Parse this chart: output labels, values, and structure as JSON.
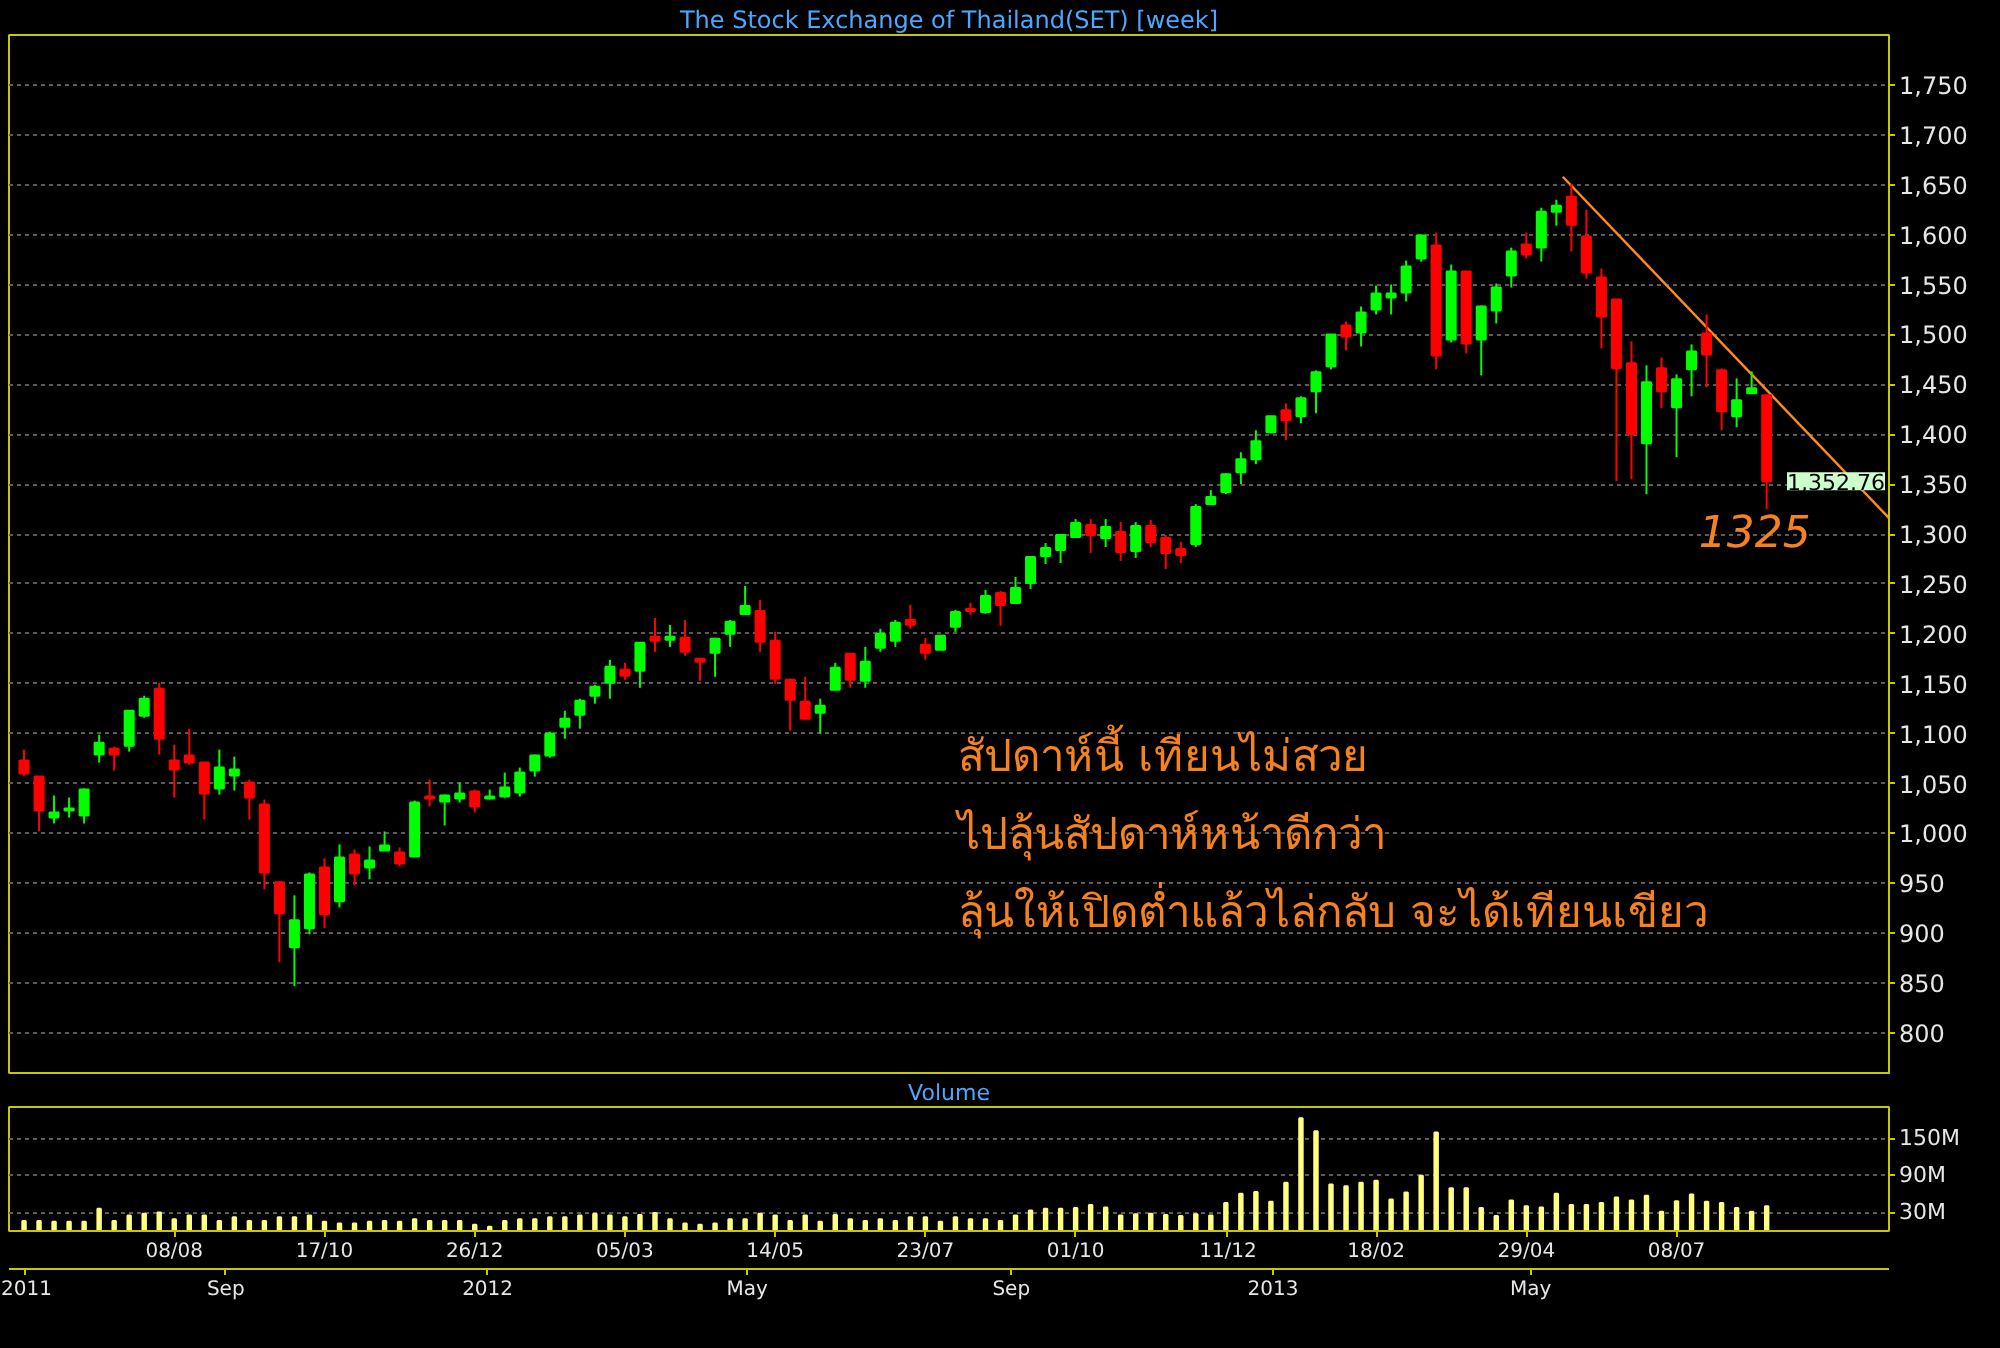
{
  "chart_data": [
    {
      "type": "candlestick",
      "title": "The Stock Exchange of Thailand(SET) [week]",
      "x": [
        "2011-05-30",
        "2011-06-06",
        "2011-06-13",
        "2011-06-20",
        "2011-06-27",
        "2011-07-04",
        "2011-07-11",
        "2011-07-18",
        "2011-07-25",
        "2011-08-01",
        "2011-08-08",
        "2011-08-15",
        "2011-08-22",
        "2011-08-29",
        "2011-09-05",
        "2011-09-12",
        "2011-09-19",
        "2011-09-26",
        "2011-10-03",
        "2011-10-10",
        "2011-10-17",
        "2011-10-24",
        "2011-10-31",
        "2011-11-07",
        "2011-11-14",
        "2011-11-21",
        "2011-11-28",
        "2011-12-05",
        "2011-12-12",
        "2011-12-19",
        "2011-12-26",
        "2012-01-02",
        "2012-01-09",
        "2012-01-16",
        "2012-01-23",
        "2012-01-30",
        "2012-02-06",
        "2012-02-13",
        "2012-02-20",
        "2012-02-27",
        "2012-03-05",
        "2012-03-12",
        "2012-03-19",
        "2012-03-26",
        "2012-04-02",
        "2012-04-09",
        "2012-04-16",
        "2012-04-23",
        "2012-04-30",
        "2012-05-07",
        "2012-05-14",
        "2012-05-21",
        "2012-05-28",
        "2012-06-04",
        "2012-06-11",
        "2012-06-18",
        "2012-06-25",
        "2012-07-02",
        "2012-07-09",
        "2012-07-16",
        "2012-07-23",
        "2012-07-30",
        "2012-08-06",
        "2012-08-13",
        "2012-08-20",
        "2012-08-27",
        "2012-09-03",
        "2012-09-10",
        "2012-09-17",
        "2012-09-24",
        "2012-10-01",
        "2012-10-08",
        "2012-10-15",
        "2012-10-22",
        "2012-10-29",
        "2012-11-05",
        "2012-11-12",
        "2012-11-19",
        "2012-11-26",
        "2012-12-03",
        "2012-12-10",
        "2012-12-17",
        "2012-12-24",
        "2012-12-31",
        "2013-01-07",
        "2013-01-14",
        "2013-01-21",
        "2013-01-28",
        "2013-02-04",
        "2013-02-11",
        "2013-02-18",
        "2013-02-25",
        "2013-03-04",
        "2013-03-11",
        "2013-03-18",
        "2013-03-25",
        "2013-04-01",
        "2013-04-08",
        "2013-04-15",
        "2013-04-22",
        "2013-04-29",
        "2013-05-06",
        "2013-05-13",
        "2013-05-20",
        "2013-05-27",
        "2013-06-03",
        "2013-06-10",
        "2013-06-17",
        "2013-06-24",
        "2013-07-01",
        "2013-07-08",
        "2013-07-15",
        "2013-07-22",
        "2013-07-29",
        "2013-08-05",
        "2013-08-12",
        "2013-08-19"
      ],
      "ohlc": [
        [
          1073,
          1084,
          1058,
          1060
        ],
        [
          1057,
          1057,
          1002,
          1023
        ],
        [
          1016,
          1038,
          1010,
          1021
        ],
        [
          1023,
          1036,
          1016,
          1025
        ],
        [
          1018,
          1045,
          1010,
          1044
        ],
        [
          1079,
          1099,
          1071,
          1091
        ],
        [
          1085,
          1087,
          1063,
          1079
        ],
        [
          1088,
          1123,
          1082,
          1123
        ],
        [
          1118,
          1138,
          1116,
          1135
        ],
        [
          1145,
          1151,
          1079,
          1095
        ],
        [
          1073,
          1089,
          1036,
          1064
        ],
        [
          1078,
          1105,
          1069,
          1071
        ],
        [
          1071,
          1071,
          1014,
          1040
        ],
        [
          1045,
          1084,
          1039,
          1066
        ],
        [
          1058,
          1077,
          1043,
          1064
        ],
        [
          1051,
          1054,
          1014,
          1036
        ],
        [
          1029,
          1034,
          944,
          961
        ],
        [
          951,
          952,
          871,
          920
        ],
        [
          886,
          938,
          847,
          913
        ],
        [
          905,
          961,
          899,
          959
        ],
        [
          966,
          975,
          905,
          919
        ],
        [
          932,
          989,
          926,
          976
        ],
        [
          979,
          984,
          948,
          960
        ],
        [
          966,
          987,
          954,
          973
        ],
        [
          983,
          1002,
          983,
          988
        ],
        [
          981,
          986,
          967,
          970
        ],
        [
          977,
          1033,
          977,
          1031
        ],
        [
          1037,
          1054,
          1027,
          1035
        ],
        [
          1032,
          1039,
          1008,
          1038
        ],
        [
          1035,
          1051,
          1031,
          1040
        ],
        [
          1042,
          1044,
          1021,
          1027
        ],
        [
          1035,
          1044,
          1034,
          1037
        ],
        [
          1037,
          1061,
          1036,
          1046
        ],
        [
          1041,
          1066,
          1037,
          1061
        ],
        [
          1063,
          1079,
          1057,
          1078
        ],
        [
          1078,
          1102,
          1076,
          1100
        ],
        [
          1107,
          1123,
          1095,
          1115
        ],
        [
          1119,
          1135,
          1105,
          1133
        ],
        [
          1138,
          1149,
          1130,
          1147
        ],
        [
          1151,
          1174,
          1135,
          1167
        ],
        [
          1164,
          1171,
          1154,
          1158
        ],
        [
          1163,
          1191,
          1146,
          1191
        ],
        [
          1197,
          1216,
          1182,
          1193
        ],
        [
          1194,
          1209,
          1187,
          1197
        ],
        [
          1196,
          1214,
          1178,
          1182
        ],
        [
          1175,
          1175,
          1153,
          1172
        ],
        [
          1181,
          1196,
          1157,
          1195
        ],
        [
          1200,
          1214,
          1187,
          1212
        ],
        [
          1220,
          1248,
          1219,
          1228
        ],
        [
          1223,
          1234,
          1182,
          1192
        ],
        [
          1193,
          1202,
          1150,
          1155
        ],
        [
          1154,
          1154,
          1103,
          1134
        ],
        [
          1132,
          1157,
          1115,
          1115
        ],
        [
          1121,
          1135,
          1100,
          1128
        ],
        [
          1144,
          1171,
          1144,
          1166
        ],
        [
          1180,
          1180,
          1146,
          1154
        ],
        [
          1153,
          1187,
          1146,
          1172
        ],
        [
          1186,
          1205,
          1182,
          1200
        ],
        [
          1193,
          1214,
          1187,
          1211
        ],
        [
          1214,
          1229,
          1205,
          1209
        ],
        [
          1189,
          1196,
          1174,
          1181
        ],
        [
          1184,
          1198,
          1184,
          1198
        ],
        [
          1207,
          1224,
          1202,
          1222
        ],
        [
          1225,
          1231,
          1219,
          1223
        ],
        [
          1222,
          1244,
          1220,
          1238
        ],
        [
          1241,
          1243,
          1208,
          1229
        ],
        [
          1231,
          1257,
          1230,
          1246
        ],
        [
          1251,
          1277,
          1245,
          1277
        ],
        [
          1278,
          1291,
          1270,
          1286
        ],
        [
          1284,
          1299,
          1271,
          1299
        ],
        [
          1297,
          1315,
          1296,
          1311
        ],
        [
          1309,
          1315,
          1281,
          1299
        ],
        [
          1296,
          1315,
          1287,
          1307
        ],
        [
          1302,
          1312,
          1273,
          1282
        ],
        [
          1283,
          1312,
          1276,
          1308
        ],
        [
          1308,
          1314,
          1287,
          1292
        ],
        [
          1296,
          1299,
          1265,
          1281
        ],
        [
          1285,
          1292,
          1271,
          1279
        ],
        [
          1290,
          1330,
          1287,
          1327
        ],
        [
          1330,
          1344,
          1330,
          1337
        ],
        [
          1342,
          1361,
          1340,
          1360
        ],
        [
          1362,
          1382,
          1350,
          1375
        ],
        [
          1375,
          1404,
          1370,
          1393
        ],
        [
          1402,
          1418,
          1402,
          1418
        ],
        [
          1424,
          1431,
          1394,
          1414
        ],
        [
          1418,
          1438,
          1411,
          1436
        ],
        [
          1443,
          1464,
          1421,
          1462
        ],
        [
          1468,
          1500,
          1465,
          1500
        ],
        [
          1509,
          1513,
          1484,
          1498
        ],
        [
          1502,
          1528,
          1488,
          1522
        ],
        [
          1525,
          1549,
          1520,
          1541
        ],
        [
          1537,
          1550,
          1520,
          1541
        ],
        [
          1542,
          1574,
          1533,
          1568
        ],
        [
          1576,
          1600,
          1573,
          1599
        ],
        [
          1589,
          1602,
          1465,
          1479
        ],
        [
          1495,
          1570,
          1492,
          1563
        ],
        [
          1563,
          1563,
          1481,
          1491
        ],
        [
          1495,
          1529,
          1459,
          1528
        ],
        [
          1524,
          1551,
          1511,
          1547
        ],
        [
          1559,
          1587,
          1547,
          1583
        ],
        [
          1590,
          1602,
          1576,
          1580
        ],
        [
          1587,
          1627,
          1573,
          1623
        ],
        [
          1623,
          1635,
          1609,
          1629
        ],
        [
          1638,
          1651,
          1583,
          1610
        ],
        [
          1598,
          1625,
          1556,
          1562
        ],
        [
          1557,
          1566,
          1486,
          1518
        ],
        [
          1535,
          1535,
          1353,
          1466
        ],
        [
          1471,
          1493,
          1355,
          1400
        ],
        [
          1391,
          1469,
          1340,
          1452
        ],
        [
          1466,
          1477,
          1426,
          1443
        ],
        [
          1427,
          1460,
          1377,
          1455
        ],
        [
          1465,
          1490,
          1438,
          1483
        ],
        [
          1501,
          1520,
          1447,
          1480
        ],
        [
          1464,
          1466,
          1404,
          1423
        ],
        [
          1418,
          1456,
          1407,
          1434
        ],
        [
          1441,
          1463,
          1441,
          1446
        ],
        [
          1439,
          1439,
          1325,
          1353
        ]
      ],
      "colors": [
        "#ff0000",
        "#ff0000",
        "#00ff00",
        "#00ff00",
        "#00ff00",
        "#00ff00",
        "#ff0000",
        "#00ff00",
        "#00ff00",
        "#ff0000",
        "#ff0000",
        "#ff0000",
        "#ff0000",
        "#00ff00",
        "#00ff00",
        "#ff0000",
        "#ff0000",
        "#ff0000",
        "#00ff00",
        "#00ff00",
        "#ff0000",
        "#00ff00",
        "#ff0000",
        "#00ff00",
        "#00ff00",
        "#ff0000",
        "#00ff00",
        "#ff0000",
        "#00ff00",
        "#00ff00",
        "#ff0000",
        "#00ff00",
        "#00ff00",
        "#00ff00",
        "#00ff00",
        "#00ff00",
        "#00ff00",
        "#00ff00",
        "#00ff00",
        "#00ff00",
        "#ff0000",
        "#00ff00",
        "#ff0000",
        "#00ff00",
        "#ff0000",
        "#ff0000",
        "#00ff00",
        "#00ff00",
        "#00ff00",
        "#ff0000",
        "#ff0000",
        "#ff0000",
        "#ff0000",
        "#00ff00",
        "#00ff00",
        "#ff0000",
        "#00ff00",
        "#00ff00",
        "#00ff00",
        "#ff0000",
        "#ff0000",
        "#00ff00",
        "#00ff00",
        "#ff0000",
        "#00ff00",
        "#ff0000",
        "#00ff00",
        "#00ff00",
        "#00ff00",
        "#00ff00",
        "#00ff00",
        "#ff0000",
        "#00ff00",
        "#ff0000",
        "#00ff00",
        "#ff0000",
        "#ff0000",
        "#ff0000",
        "#00ff00",
        "#00ff00",
        "#00ff00",
        "#00ff00",
        "#00ff00",
        "#00ff00",
        "#ff0000",
        "#00ff00",
        "#00ff00",
        "#00ff00",
        "#ff0000",
        "#00ff00",
        "#00ff00",
        "#00ff00",
        "#00ff00",
        "#00ff00",
        "#ff0000",
        "#00ff00",
        "#ff0000",
        "#00ff00",
        "#00ff00",
        "#00ff00",
        "#ff0000",
        "#00ff00",
        "#00ff00",
        "#ff0000",
        "#ff0000",
        "#ff0000",
        "#ff0000",
        "#ff0000",
        "#00ff00",
        "#ff0000",
        "#00ff00",
        "#00ff00",
        "#ff0000",
        "#ff0000",
        "#00ff00",
        "#00ff00",
        "#ff0000"
      ],
      "series": [
        {
          "type": "line",
          "color": "#ff8c1a",
          "x": [
            "2013-05-16",
            "2013-10-15"
          ],
          "values": [
            1658,
            1316
          ]
        }
      ],
      "annotations": [
        "สัปดาห์นี้ เทียนไม่สวย",
        "ไปลุ้นสัปดาห์หน้าดีกว่า",
        "ลุ้นให้เปิดต่ำแล้วไล่กลับ จะได้เทียนเขียว",
        {
          "text": "1325",
          "x": "2013-08-19",
          "y": 1325
        },
        "1,352.76"
      ],
      "xlim": [
        "2011-05-23",
        "2013-10-15"
      ],
      "ylim": [
        758,
        1800
      ],
      "yticks": [
        800,
        850,
        900,
        950,
        {
          "value": 1000,
          "label": "1,000"
        },
        {
          "value": 1050,
          "label": "1,050"
        },
        {
          "value": 1100,
          "label": "1,100"
        },
        {
          "value": 1150,
          "label": "1,150"
        },
        {
          "value": 1200,
          "label": "1,200"
        },
        {
          "value": 1250,
          "label": "1,250"
        },
        {
          "value": 1300,
          "label": "1,300"
        },
        {
          "value": 1350,
          "label": "1,350"
        },
        {
          "value": 1400,
          "label": "1,400"
        },
        {
          "value": 1450,
          "label": "1,450"
        },
        {
          "value": 1500,
          "label": "1,500"
        },
        {
          "value": 1550,
          "label": "1,550"
        },
        {
          "value": 1600,
          "label": "1,600"
        },
        {
          "value": 1650,
          "label": "1,650"
        },
        {
          "value": 1700,
          "label": "1,700"
        },
        {
          "value": 1750,
          "label": "1,750"
        }
      ],
      "grid": "y",
      "tick_labels": "y"
    },
    {
      "type": "bar",
      "title": "Volume",
      "color": "#ffff80",
      "x": [
        "2011-05-30",
        "2011-06-06",
        "2011-06-13",
        "2011-06-20",
        "2011-06-27",
        "2011-07-04",
        "2011-07-11",
        "2011-07-18",
        "2011-07-25",
        "2011-08-01",
        "2011-08-08",
        "2011-08-15",
        "2011-08-22",
        "2011-08-29",
        "2011-09-05",
        "2011-09-12",
        "2011-09-19",
        "2011-09-26",
        "2011-10-03",
        "2011-10-10",
        "2011-10-17",
        "2011-10-24",
        "2011-10-31",
        "2011-11-07",
        "2011-11-14",
        "2011-11-21",
        "2011-11-28",
        "2011-12-05",
        "2011-12-12",
        "2011-12-19",
        "2011-12-26",
        "2012-01-02",
        "2012-01-09",
        "2012-01-16",
        "2012-01-23",
        "2012-01-30",
        "2012-02-06",
        "2012-02-13",
        "2012-02-20",
        "2012-02-27",
        "2012-03-05",
        "2012-03-12",
        "2012-03-19",
        "2012-03-26",
        "2012-04-02",
        "2012-04-09",
        "2012-04-16",
        "2012-04-23",
        "2012-04-30",
        "2012-05-07",
        "2012-05-14",
        "2012-05-21",
        "2012-05-28",
        "2012-06-04",
        "2012-06-11",
        "2012-06-18",
        "2012-06-25",
        "2012-07-02",
        "2012-07-09",
        "2012-07-16",
        "2012-07-23",
        "2012-07-30",
        "2012-08-06",
        "2012-08-13",
        "2012-08-20",
        "2012-08-27",
        "2012-09-03",
        "2012-09-10",
        "2012-09-17",
        "2012-09-24",
        "2012-10-01",
        "2012-10-08",
        "2012-10-15",
        "2012-10-22",
        "2012-10-29",
        "2012-11-05",
        "2012-11-12",
        "2012-11-19",
        "2012-11-26",
        "2012-12-03",
        "2012-12-10",
        "2012-12-17",
        "2012-12-24",
        "2012-12-31",
        "2013-01-07",
        "2013-01-14",
        "2013-01-21",
        "2013-01-28",
        "2013-02-04",
        "2013-02-11",
        "2013-02-18",
        "2013-02-25",
        "2013-03-04",
        "2013-03-11",
        "2013-03-18",
        "2013-03-25",
        "2013-04-01",
        "2013-04-08",
        "2013-04-15",
        "2013-04-22",
        "2013-04-29",
        "2013-05-06",
        "2013-05-13",
        "2013-05-20",
        "2013-05-27",
        "2013-06-03",
        "2013-06-10",
        "2013-06-17",
        "2013-06-24",
        "2013-07-01",
        "2013-07-08",
        "2013-07-15",
        "2013-07-22",
        "2013-07-29",
        "2013-08-05",
        "2013-08-12",
        "2013-08-19"
      ],
      "values": [
        16,
        16,
        15,
        15,
        15,
        36,
        16,
        25,
        28,
        30,
        19,
        25,
        25,
        16,
        22,
        16,
        16,
        22,
        22,
        25,
        15,
        12,
        12,
        15,
        16,
        15,
        19,
        16,
        16,
        16,
        10,
        7,
        16,
        19,
        19,
        22,
        22,
        25,
        28,
        25,
        22,
        26,
        29,
        19,
        12,
        10,
        12,
        19,
        19,
        28,
        25,
        16,
        25,
        15,
        26,
        19,
        16,
        19,
        16,
        22,
        22,
        15,
        22,
        19,
        19,
        16,
        25,
        33,
        36,
        36,
        37,
        42,
        38,
        25,
        27,
        28,
        26,
        24,
        27,
        25,
        45,
        60,
        63,
        47,
        78,
        182,
        161,
        75,
        72,
        78,
        81,
        51,
        62,
        89,
        159,
        69,
        69,
        37,
        24,
        49,
        40,
        38,
        60,
        42,
        42,
        45,
        54,
        49,
        57,
        31,
        48,
        59,
        47,
        45,
        37,
        31,
        40
      ],
      "xlim": [
        "2011-05-23",
        "2013-10-15"
      ],
      "x2lim": [
        "2011-05-23",
        "2013-10-15"
      ],
      "ylim": [
        0,
        200
      ],
      "yticks": [
        {
          "value": 30,
          "label": "30M"
        },
        {
          "value": 90,
          "label": "90M"
        },
        {
          "value": 150,
          "label": "150M"
        }
      ],
      "xticks": [
        {
          "value": "2011-08-08",
          "label": "08/08"
        },
        {
          "value": "2011-10-17",
          "label": "17/10"
        },
        {
          "value": "2011-12-26",
          "label": "26/12"
        },
        {
          "value": "2012-03-05",
          "label": "05/03"
        },
        {
          "value": "2012-05-14",
          "label": "14/05"
        },
        {
          "value": "2012-07-23",
          "label": "23/07"
        },
        {
          "value": "2012-10-01",
          "label": "01/10"
        },
        {
          "value": "2012-12-11",
          "label": "11/12"
        },
        {
          "value": "2013-02-18",
          "label": "18/02"
        },
        {
          "value": "2013-04-29",
          "label": "29/04"
        },
        {
          "value": "2013-07-08",
          "label": "08/07"
        }
      ],
      "x2ticks": [
        {
          "value": "2011-05-30",
          "label": "2011"
        },
        {
          "value": "2011-09-01",
          "label": "Sep"
        },
        {
          "value": "2012-01-01",
          "label": "2012"
        },
        {
          "value": "2012-05-01",
          "label": "May"
        },
        {
          "value": "2012-09-01",
          "label": "Sep"
        },
        {
          "value": "2013-01-01",
          "label": "2013"
        },
        {
          "value": "2013-05-01",
          "label": "May"
        }
      ],
      "grid": "y"
    }
  ]
}
